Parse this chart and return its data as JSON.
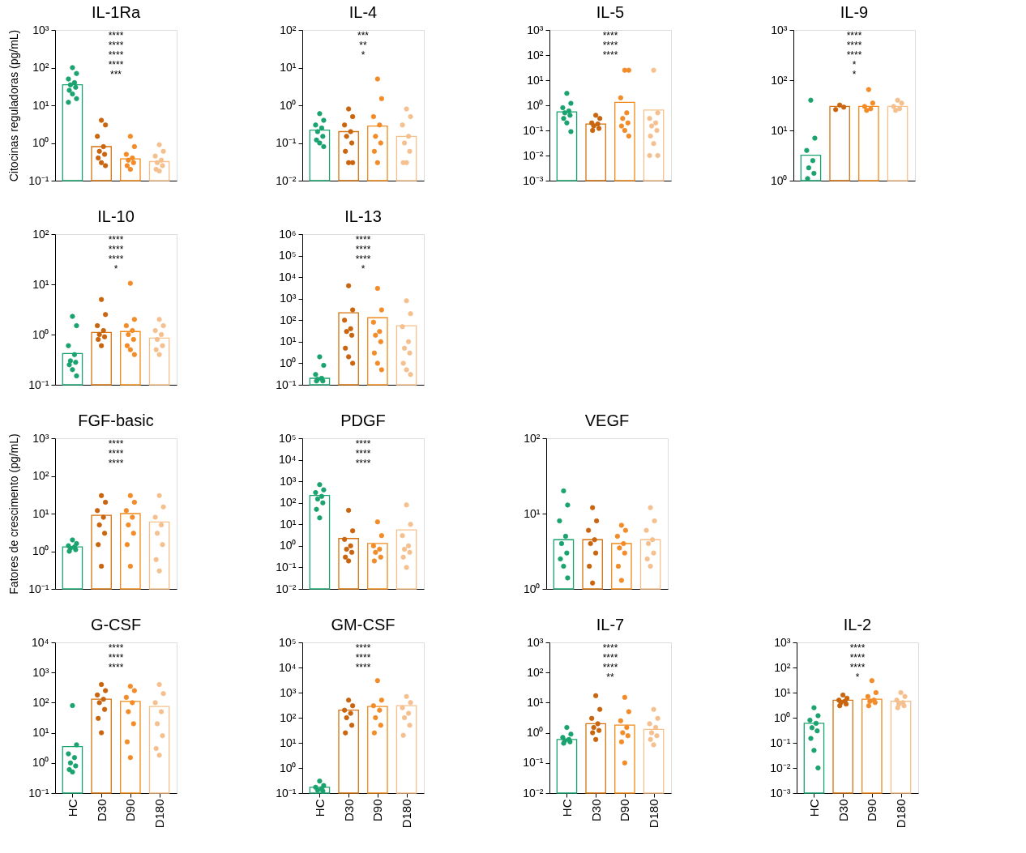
{
  "chart_data": [
    {
      "type": "bar",
      "title": "IL-1Ra",
      "ylabel": "Citocinas reguladoras (pg/mL)",
      "log": true,
      "tick_labels": "y",
      "marker": "circle",
      "categories": [
        "HC",
        "D30",
        "D90",
        "D180"
      ],
      "ylim": [
        0.1,
        1000
      ],
      "yticks": [
        {
          "value": 0.1,
          "label": "10⁻¹"
        },
        {
          "value": 1,
          "label": "10⁰"
        },
        {
          "value": 10,
          "label": "10¹"
        },
        {
          "value": 100,
          "label": "10²"
        },
        {
          "value": 1000,
          "label": "10³"
        }
      ],
      "annotations": [
        "****",
        "****",
        "****",
        "****",
        "***"
      ],
      "series": [
        {
          "type": "bar",
          "colors": [
            "#1aa36f",
            "#d4730f",
            "#f08a1a",
            "#f7c08a"
          ],
          "values": [
            35,
            0.8,
            0.38,
            0.32
          ]
        },
        {
          "type": "scatter",
          "color": "#1aa36f",
          "x": [
            "HC",
            "HC",
            "HC",
            "HC",
            "HC",
            "HC",
            "HC",
            "HC",
            "HC",
            "HC"
          ],
          "values": [
            100,
            70,
            50,
            40,
            35,
            30,
            25,
            20,
            15,
            12
          ]
        },
        {
          "type": "scatter",
          "color": "#c8650e",
          "x": [
            "D30",
            "D30",
            "D30",
            "D30",
            "D30",
            "D30",
            "D30",
            "D30",
            "D30"
          ],
          "values": [
            4,
            3,
            1.5,
            0.8,
            0.6,
            0.5,
            0.4,
            0.3,
            0.25
          ]
        },
        {
          "type": "scatter",
          "color": "#f28c28",
          "x": [
            "D90",
            "D90",
            "D90",
            "D90",
            "D90",
            "D90",
            "D90",
            "D90"
          ],
          "values": [
            1.5,
            0.8,
            0.5,
            0.4,
            0.35,
            0.3,
            0.25,
            0.2
          ]
        },
        {
          "type": "scatter",
          "color": "#f5c08f",
          "x": [
            "D180",
            "D180",
            "D180",
            "D180",
            "D180",
            "D180",
            "D180",
            "D180"
          ],
          "values": [
            0.9,
            0.6,
            0.45,
            0.35,
            0.3,
            0.25,
            0.2,
            0.18
          ]
        }
      ]
    },
    {
      "type": "bar",
      "title": "IL-4",
      "log": true,
      "tick_labels": "y",
      "marker": "circle",
      "categories": [
        "HC",
        "D30",
        "D90",
        "D180"
      ],
      "ylim": [
        0.01,
        100
      ],
      "yticks": [
        {
          "value": 0.01,
          "label": "10⁻²"
        },
        {
          "value": 0.1,
          "label": "10⁻¹"
        },
        {
          "value": 1,
          "label": "10⁰"
        },
        {
          "value": 10,
          "label": "10¹"
        },
        {
          "value": 100,
          "label": "10²"
        }
      ],
      "annotations": [
        "***",
        "**",
        "*"
      ],
      "series": [
        {
          "type": "bar",
          "colors": [
            "#1aa36f",
            "#d4730f",
            "#f08a1a",
            "#f7c08a"
          ],
          "values": [
            0.22,
            0.2,
            0.28,
            0.15
          ]
        },
        {
          "type": "scatter",
          "color": "#1aa36f",
          "x": [
            "HC",
            "HC",
            "HC",
            "HC",
            "HC",
            "HC",
            "HC",
            "HC",
            "HC"
          ],
          "values": [
            0.6,
            0.4,
            0.3,
            0.25,
            0.2,
            0.15,
            0.12,
            0.1,
            0.08
          ]
        },
        {
          "type": "scatter",
          "color": "#c8650e",
          "x": [
            "D30",
            "D30",
            "D30",
            "D30",
            "D30",
            "D30",
            "D30",
            "D30",
            "D30"
          ],
          "values": [
            0.8,
            0.5,
            0.3,
            0.2,
            0.15,
            0.1,
            0.06,
            0.03,
            0.03
          ]
        },
        {
          "type": "scatter",
          "color": "#f28c28",
          "x": [
            "D90",
            "D90",
            "D90",
            "D90",
            "D90",
            "D90",
            "D90",
            "D90"
          ],
          "values": [
            5,
            1.5,
            0.5,
            0.3,
            0.15,
            0.1,
            0.06,
            0.03
          ]
        },
        {
          "type": "scatter",
          "color": "#f5c08f",
          "x": [
            "D180",
            "D180",
            "D180",
            "D180",
            "D180",
            "D180",
            "D180",
            "D180"
          ],
          "values": [
            0.8,
            0.5,
            0.3,
            0.15,
            0.1,
            0.06,
            0.03,
            0.03
          ]
        }
      ]
    },
    {
      "type": "bar",
      "title": "IL-5",
      "log": true,
      "tick_labels": "y",
      "marker": "circle",
      "categories": [
        "HC",
        "D30",
        "D90",
        "D180"
      ],
      "ylim": [
        0.001,
        1000
      ],
      "yticks": [
        {
          "value": 0.001,
          "label": "10⁻³"
        },
        {
          "value": 0.01,
          "label": "10⁻²"
        },
        {
          "value": 0.1,
          "label": "10⁻¹"
        },
        {
          "value": 1,
          "label": "10⁰"
        },
        {
          "value": 10,
          "label": "10¹"
        },
        {
          "value": 100,
          "label": "10²"
        },
        {
          "value": 1000,
          "label": "10³"
        }
      ],
      "annotations": [
        "****",
        "****",
        "****"
      ],
      "series": [
        {
          "type": "bar",
          "colors": [
            "#1aa36f",
            "#d4730f",
            "#f08a1a",
            "#f7c08a"
          ],
          "values": [
            0.55,
            0.18,
            1.3,
            0.65
          ]
        },
        {
          "type": "scatter",
          "color": "#1aa36f",
          "x": [
            "HC",
            "HC",
            "HC",
            "HC",
            "HC",
            "HC",
            "HC",
            "HC",
            "HC"
          ],
          "values": [
            3,
            1.2,
            0.8,
            0.6,
            0.5,
            0.4,
            0.3,
            0.2,
            0.09
          ]
        },
        {
          "type": "scatter",
          "color": "#c8650e",
          "x": [
            "D30",
            "D30",
            "D30",
            "D30",
            "D30",
            "D30",
            "D30"
          ],
          "values": [
            0.4,
            0.3,
            0.2,
            0.18,
            0.15,
            0.12,
            0.1
          ]
        },
        {
          "type": "scatter",
          "color": "#f28c28",
          "x": [
            "D90",
            "D90",
            "D90",
            "D90",
            "D90",
            "D90",
            "D90",
            "D90",
            "D90"
          ],
          "values": [
            25,
            25,
            2,
            0.5,
            0.3,
            0.2,
            0.15,
            0.1,
            0.06
          ]
        },
        {
          "type": "scatter",
          "color": "#f5c08f",
          "x": [
            "D180",
            "D180",
            "D180",
            "D180",
            "D180",
            "D180",
            "D180",
            "D180",
            "D180",
            "D180"
          ],
          "values": [
            25,
            0.5,
            0.3,
            0.2,
            0.15,
            0.1,
            0.06,
            0.03,
            0.01,
            0.01
          ]
        }
      ]
    },
    {
      "type": "bar",
      "title": "IL-9",
      "log": true,
      "tick_labels": "y",
      "marker": "circle",
      "categories": [
        "HC",
        "D30",
        "D90",
        "D180"
      ],
      "ylim": [
        1,
        1000
      ],
      "yticks": [
        {
          "value": 1,
          "label": "10⁰"
        },
        {
          "value": 10,
          "label": "10¹"
        },
        {
          "value": 100,
          "label": "10²"
        },
        {
          "value": 1000,
          "label": "10³"
        }
      ],
      "annotations": [
        "****",
        "****",
        "****",
        "*",
        "*"
      ],
      "series": [
        {
          "type": "bar",
          "colors": [
            "#1aa36f",
            "#d4730f",
            "#f08a1a",
            "#f7c08a"
          ],
          "values": [
            3.2,
            30,
            30,
            30
          ]
        },
        {
          "type": "scatter",
          "color": "#1aa36f",
          "x": [
            "HC",
            "HC",
            "HC",
            "HC",
            "HC",
            "HC",
            "HC"
          ],
          "values": [
            40,
            7,
            4,
            2.5,
            1.8,
            1.4,
            1.1
          ]
        },
        {
          "type": "scatter",
          "color": "#c8650e",
          "x": [
            "D30",
            "D30",
            "D30"
          ],
          "values": [
            32,
            29,
            26
          ]
        },
        {
          "type": "scatter",
          "color": "#f28c28",
          "x": [
            "D90",
            "D90",
            "D90",
            "D90",
            "D90"
          ],
          "values": [
            65,
            35,
            30,
            27,
            25
          ]
        },
        {
          "type": "scatter",
          "color": "#f5c08f",
          "x": [
            "D180",
            "D180",
            "D180",
            "D180",
            "D180"
          ],
          "values": [
            40,
            35,
            30,
            27,
            25
          ]
        }
      ]
    },
    {
      "type": "bar",
      "title": "IL-10",
      "log": true,
      "tick_labels": "y",
      "marker": "circle",
      "categories": [
        "HC",
        "D30",
        "D90",
        "D180"
      ],
      "ylim": [
        0.1,
        100
      ],
      "yticks": [
        {
          "value": 0.1,
          "label": "10⁻¹"
        },
        {
          "value": 1,
          "label": "10⁰"
        },
        {
          "value": 10,
          "label": "10¹"
        },
        {
          "value": 100,
          "label": "10²"
        }
      ],
      "annotations": [
        "****",
        "****",
        "****",
        "*"
      ],
      "series": [
        {
          "type": "bar",
          "colors": [
            "#1aa36f",
            "#d4730f",
            "#f08a1a",
            "#f7c08a"
          ],
          "values": [
            0.42,
            1.1,
            1.15,
            0.85
          ]
        },
        {
          "type": "scatter",
          "color": "#1aa36f",
          "x": [
            "HC",
            "HC",
            "HC",
            "HC",
            "HC",
            "HC",
            "HC",
            "HC",
            "HC"
          ],
          "values": [
            2.3,
            1.5,
            0.6,
            0.4,
            0.3,
            0.28,
            0.25,
            0.2,
            0.15
          ]
        },
        {
          "type": "scatter",
          "color": "#c8650e",
          "x": [
            "D30",
            "D30",
            "D30",
            "D30",
            "D30",
            "D30",
            "D30",
            "D30"
          ],
          "values": [
            5,
            2.5,
            1.5,
            1.2,
            1,
            0.9,
            0.8,
            0.6
          ]
        },
        {
          "type": "scatter",
          "color": "#f28c28",
          "x": [
            "D90",
            "D90",
            "D90",
            "D90",
            "D90",
            "D90",
            "D90",
            "D90",
            "D90"
          ],
          "values": [
            10.5,
            2,
            1.5,
            1.2,
            1,
            0.8,
            0.6,
            0.5,
            0.4
          ]
        },
        {
          "type": "scatter",
          "color": "#f5c08f",
          "x": [
            "D180",
            "D180",
            "D180",
            "D180",
            "D180",
            "D180",
            "D180",
            "D180"
          ],
          "values": [
            2,
            1.5,
            1.2,
            1,
            0.8,
            0.6,
            0.5,
            0.4
          ]
        }
      ]
    },
    {
      "type": "bar",
      "title": "IL-13",
      "log": true,
      "tick_labels": "y",
      "marker": "circle",
      "categories": [
        "HC",
        "D30",
        "D90",
        "D180"
      ],
      "ylim": [
        0.1,
        1000000
      ],
      "yticks": [
        {
          "value": 0.1,
          "label": "10⁻¹"
        },
        {
          "value": 1,
          "label": "10⁰"
        },
        {
          "value": 10,
          "label": "10¹"
        },
        {
          "value": 100,
          "label": "10²"
        },
        {
          "value": 1000,
          "label": "10³"
        },
        {
          "value": 10000,
          "label": "10⁴"
        },
        {
          "value": 100000,
          "label": "10⁵"
        },
        {
          "value": 1000000,
          "label": "10⁶"
        }
      ],
      "annotations": [
        "****",
        "****",
        "****",
        "*"
      ],
      "series": [
        {
          "type": "bar",
          "colors": [
            "#1aa36f",
            "#d4730f",
            "#f08a1a",
            "#f7c08a"
          ],
          "values": [
            0.2,
            220,
            130,
            55
          ]
        },
        {
          "type": "scatter",
          "color": "#1aa36f",
          "x": [
            "HC",
            "HC",
            "HC",
            "HC",
            "HC",
            "HC",
            "HC"
          ],
          "values": [
            2,
            0.8,
            0.3,
            0.2,
            0.18,
            0.15,
            0.15
          ]
        },
        {
          "type": "scatter",
          "color": "#c8650e",
          "x": [
            "D30",
            "D30",
            "D30",
            "D30",
            "D30",
            "D30",
            "D30",
            "D30",
            "D30"
          ],
          "values": [
            4000,
            300,
            100,
            40,
            30,
            20,
            5,
            2,
            1
          ]
        },
        {
          "type": "scatter",
          "color": "#f28c28",
          "x": [
            "D90",
            "D90",
            "D90",
            "D90",
            "D90",
            "D90",
            "D90",
            "D90",
            "D90"
          ],
          "values": [
            3000,
            300,
            80,
            30,
            20,
            10,
            3,
            1,
            0.5
          ]
        },
        {
          "type": "scatter",
          "color": "#f5c08f",
          "x": [
            "D180",
            "D180",
            "D180",
            "D180",
            "D180",
            "D180",
            "D180",
            "D180",
            "D180"
          ],
          "values": [
            800,
            200,
            50,
            10,
            5,
            3,
            1,
            0.5,
            0.3
          ]
        }
      ]
    },
    {
      "type": "bar",
      "title": "FGF-basic",
      "ylabel": "Fatores de crescimento (pg/mL)",
      "log": true,
      "tick_labels": "y",
      "marker": "circle",
      "categories": [
        "HC",
        "D30",
        "D90",
        "D180"
      ],
      "ylim": [
        0.1,
        1000
      ],
      "yticks": [
        {
          "value": 0.1,
          "label": "10⁻¹"
        },
        {
          "value": 1,
          "label": "10⁰"
        },
        {
          "value": 10,
          "label": "10¹"
        },
        {
          "value": 100,
          "label": "10²"
        },
        {
          "value": 1000,
          "label": "10³"
        }
      ],
      "annotations": [
        "****",
        "****",
        "****"
      ],
      "series": [
        {
          "type": "bar",
          "colors": [
            "#1aa36f",
            "#d4730f",
            "#f08a1a",
            "#f7c08a"
          ],
          "values": [
            1.3,
            9,
            10,
            6
          ]
        },
        {
          "type": "scatter",
          "color": "#1aa36f",
          "x": [
            "HC",
            "HC",
            "HC",
            "HC",
            "HC",
            "HC",
            "HC"
          ],
          "values": [
            2,
            1.6,
            1.4,
            1.3,
            1.2,
            1.1,
            1
          ]
        },
        {
          "type": "scatter",
          "color": "#c8650e",
          "x": [
            "D30",
            "D30",
            "D30",
            "D30",
            "D30",
            "D30",
            "D30",
            "D30"
          ],
          "values": [
            30,
            20,
            12,
            8,
            5,
            3,
            1.5,
            0.4
          ]
        },
        {
          "type": "scatter",
          "color": "#f28c28",
          "x": [
            "D90",
            "D90",
            "D90",
            "D90",
            "D90",
            "D90",
            "D90",
            "D90"
          ],
          "values": [
            30,
            20,
            12,
            8,
            5,
            3,
            1.5,
            0.4
          ]
        },
        {
          "type": "scatter",
          "color": "#f5c08f",
          "x": [
            "D180",
            "D180",
            "D180",
            "D180",
            "D180",
            "D180",
            "D180",
            "D180"
          ],
          "values": [
            30,
            15,
            8,
            5,
            3,
            1.5,
            0.6,
            0.3
          ]
        }
      ]
    },
    {
      "type": "bar",
      "title": "PDGF",
      "log": true,
      "tick_labels": "y",
      "marker": "circle",
      "categories": [
        "HC",
        "D30",
        "D90",
        "D180"
      ],
      "ylim": [
        0.01,
        100000
      ],
      "yticks": [
        {
          "value": 0.01,
          "label": "10⁻²"
        },
        {
          "value": 0.1,
          "label": "10⁻¹"
        },
        {
          "value": 1,
          "label": "10⁰"
        },
        {
          "value": 10,
          "label": "10¹"
        },
        {
          "value": 100,
          "label": "10²"
        },
        {
          "value": 1000,
          "label": "10³"
        },
        {
          "value": 10000,
          "label": "10⁴"
        },
        {
          "value": 100000,
          "label": "10⁵"
        }
      ],
      "annotations": [
        "****",
        "****",
        "****"
      ],
      "series": [
        {
          "type": "bar",
          "colors": [
            "#1aa36f",
            "#d4730f",
            "#f08a1a",
            "#f7c08a"
          ],
          "values": [
            220,
            2.2,
            1.3,
            5.5
          ]
        },
        {
          "type": "scatter",
          "color": "#1aa36f",
          "x": [
            "HC",
            "HC",
            "HC",
            "HC",
            "HC",
            "HC",
            "HC",
            "HC"
          ],
          "values": [
            700,
            400,
            300,
            200,
            150,
            100,
            50,
            20
          ]
        },
        {
          "type": "scatter",
          "color": "#c8650e",
          "x": [
            "D30",
            "D30",
            "D30",
            "D30",
            "D30",
            "D30",
            "D30",
            "D30"
          ],
          "values": [
            45,
            5,
            2,
            1,
            0.7,
            0.5,
            0.3,
            0.2
          ]
        },
        {
          "type": "scatter",
          "color": "#f28c28",
          "x": [
            "D90",
            "D90",
            "D90",
            "D90",
            "D90",
            "D90",
            "D90"
          ],
          "values": [
            13,
            3,
            1,
            0.7,
            0.5,
            0.3,
            0.2
          ]
        },
        {
          "type": "scatter",
          "color": "#f5c08f",
          "x": [
            "D180",
            "D180",
            "D180",
            "D180",
            "D180",
            "D180",
            "D180",
            "D180"
          ],
          "values": [
            80,
            10,
            3,
            1,
            0.7,
            0.5,
            0.3,
            0.1
          ]
        }
      ]
    },
    {
      "type": "bar",
      "title": "VEGF",
      "log": true,
      "tick_labels": "y",
      "marker": "circle",
      "categories": [
        "HC",
        "D30",
        "D90",
        "D180"
      ],
      "ylim": [
        1,
        100
      ],
      "yticks": [
        {
          "value": 1,
          "label": "10⁰"
        },
        {
          "value": 10,
          "label": "10¹"
        },
        {
          "value": 100,
          "label": "10²"
        }
      ],
      "series": [
        {
          "type": "bar",
          "colors": [
            "#1aa36f",
            "#d4730f",
            "#f08a1a",
            "#f7c08a"
          ],
          "values": [
            4.5,
            4.5,
            4,
            4.5
          ]
        },
        {
          "type": "scatter",
          "color": "#1aa36f",
          "x": [
            "HC",
            "HC",
            "HC",
            "HC",
            "HC",
            "HC",
            "HC",
            "HC",
            "HC"
          ],
          "values": [
            20,
            13,
            8,
            5,
            4,
            3,
            2.5,
            2,
            1.4
          ]
        },
        {
          "type": "scatter",
          "color": "#c8650e",
          "x": [
            "D30",
            "D30",
            "D30",
            "D30",
            "D30",
            "D30",
            "D30",
            "D30"
          ],
          "values": [
            12,
            8,
            6,
            4.5,
            4,
            3,
            2,
            1.2
          ]
        },
        {
          "type": "scatter",
          "color": "#f28c28",
          "x": [
            "D90",
            "D90",
            "D90",
            "D90",
            "D90",
            "D90",
            "D90",
            "D90"
          ],
          "values": [
            7,
            6,
            5,
            4,
            3.5,
            3,
            2,
            1.3
          ]
        },
        {
          "type": "scatter",
          "color": "#f5c08f",
          "x": [
            "D180",
            "D180",
            "D180",
            "D180",
            "D180",
            "D180",
            "D180",
            "D180"
          ],
          "values": [
            12,
            8,
            6,
            4.5,
            4,
            3,
            2.5,
            2
          ]
        }
      ]
    },
    {
      "type": "bar",
      "title": "G-CSF",
      "log": true,
      "marker": "circle",
      "categories": [
        "HC",
        "D30",
        "D90",
        "D180"
      ],
      "ylim": [
        0.1,
        10000
      ],
      "yticks": [
        {
          "value": 0.1,
          "label": "10⁻¹"
        },
        {
          "value": 1,
          "label": "10⁰"
        },
        {
          "value": 10,
          "label": "10¹"
        },
        {
          "value": 100,
          "label": "10²"
        },
        {
          "value": 1000,
          "label": "10³"
        },
        {
          "value": 10000,
          "label": "10⁴"
        }
      ],
      "annotations": [
        "****",
        "****",
        "****"
      ],
      "series": [
        {
          "type": "bar",
          "colors": [
            "#1aa36f",
            "#d4730f",
            "#f08a1a",
            "#f7c08a"
          ],
          "values": [
            3.5,
            130,
            110,
            75
          ]
        },
        {
          "type": "scatter",
          "color": "#1aa36f",
          "x": [
            "HC",
            "HC",
            "HC",
            "HC",
            "HC",
            "HC",
            "HC",
            "HC"
          ],
          "values": [
            80,
            4,
            2,
            1.5,
            1,
            0.8,
            0.6,
            0.5
          ]
        },
        {
          "type": "scatter",
          "color": "#c8650e",
          "x": [
            "D30",
            "D30",
            "D30",
            "D30",
            "D30",
            "D30",
            "D30",
            "D30"
          ],
          "values": [
            400,
            250,
            180,
            130,
            100,
            60,
            30,
            10
          ]
        },
        {
          "type": "scatter",
          "color": "#f28c28",
          "x": [
            "D90",
            "D90",
            "D90",
            "D90",
            "D90",
            "D90",
            "D90",
            "D90"
          ],
          "values": [
            350,
            250,
            150,
            100,
            50,
            20,
            5,
            1.5
          ]
        },
        {
          "type": "scatter",
          "color": "#f5c08f",
          "x": [
            "D180",
            "D180",
            "D180",
            "D180",
            "D180",
            "D180",
            "D180",
            "D180"
          ],
          "values": [
            400,
            200,
            100,
            50,
            20,
            8,
            3,
            1.8
          ]
        }
      ]
    },
    {
      "type": "bar",
      "title": "GM-CSF",
      "log": true,
      "marker": "circle",
      "categories": [
        "HC",
        "D30",
        "D90",
        "D180"
      ],
      "ylim": [
        0.1,
        100000
      ],
      "yticks": [
        {
          "value": 0.1,
          "label": "10⁻¹"
        },
        {
          "value": 1,
          "label": "10⁰"
        },
        {
          "value": 10,
          "label": "10¹"
        },
        {
          "value": 100,
          "label": "10²"
        },
        {
          "value": 1000,
          "label": "10³"
        },
        {
          "value": 10000,
          "label": "10⁴"
        },
        {
          "value": 100000,
          "label": "10⁵"
        }
      ],
      "annotations": [
        "****",
        "****",
        "****"
      ],
      "series": [
        {
          "type": "bar",
          "colors": [
            "#1aa36f",
            "#d4730f",
            "#f08a1a",
            "#f7c08a"
          ],
          "values": [
            0.17,
            200,
            280,
            300
          ]
        },
        {
          "type": "scatter",
          "color": "#1aa36f",
          "x": [
            "HC",
            "HC",
            "HC",
            "HC",
            "HC",
            "HC"
          ],
          "values": [
            0.3,
            0.2,
            0.17,
            0.15,
            0.13,
            0.12
          ]
        },
        {
          "type": "scatter",
          "color": "#c8650e",
          "x": [
            "D30",
            "D30",
            "D30",
            "D30",
            "D30",
            "D30",
            "D30"
          ],
          "values": [
            500,
            300,
            200,
            150,
            100,
            50,
            25
          ]
        },
        {
          "type": "scatter",
          "color": "#f28c28",
          "x": [
            "D90",
            "D90",
            "D90",
            "D90",
            "D90",
            "D90",
            "D90"
          ],
          "values": [
            3000,
            500,
            300,
            200,
            100,
            50,
            25
          ]
        },
        {
          "type": "scatter",
          "color": "#f5c08f",
          "x": [
            "D180",
            "D180",
            "D180",
            "D180",
            "D180",
            "D180",
            "D180"
          ],
          "values": [
            700,
            400,
            250,
            150,
            100,
            50,
            20
          ]
        }
      ]
    },
    {
      "type": "bar",
      "title": "IL-7",
      "log": true,
      "marker": "circle",
      "categories": [
        "HC",
        "D30",
        "D90",
        "D180"
      ],
      "ylim": [
        0.01,
        1000
      ],
      "yticks": [
        {
          "value": 0.01,
          "label": "10⁻²"
        },
        {
          "value": 0.1,
          "label": "10⁻¹"
        },
        {
          "value": 1,
          "label": "10⁰"
        },
        {
          "value": 10,
          "label": "10¹"
        },
        {
          "value": 100,
          "label": "10²"
        },
        {
          "value": 1000,
          "label": "10³"
        }
      ],
      "annotations": [
        "****",
        "****",
        "****",
        "**"
      ],
      "series": [
        {
          "type": "bar",
          "colors": [
            "#1aa36f",
            "#d4730f",
            "#f08a1a",
            "#f7c08a"
          ],
          "values": [
            0.6,
            2,
            1.8,
            1.3
          ]
        },
        {
          "type": "scatter",
          "color": "#1aa36f",
          "x": [
            "HC",
            "HC",
            "HC",
            "HC",
            "HC",
            "HC",
            "HC"
          ],
          "values": [
            1.5,
            0.9,
            0.7,
            0.6,
            0.55,
            0.5,
            0.45
          ]
        },
        {
          "type": "scatter",
          "color": "#c8650e",
          "x": [
            "D30",
            "D30",
            "D30",
            "D30",
            "D30",
            "D30",
            "D30",
            "D30"
          ],
          "values": [
            17,
            6,
            3,
            2,
            1.5,
            1.2,
            1,
            0.6
          ]
        },
        {
          "type": "scatter",
          "color": "#f28c28",
          "x": [
            "D90",
            "D90",
            "D90",
            "D90",
            "D90",
            "D90",
            "D90",
            "D90"
          ],
          "values": [
            15,
            5,
            2.5,
            1.5,
            1,
            0.8,
            0.5,
            0.1
          ]
        },
        {
          "type": "scatter",
          "color": "#f5c08f",
          "x": [
            "D180",
            "D180",
            "D180",
            "D180",
            "D180",
            "D180",
            "D180",
            "D180"
          ],
          "values": [
            6,
            3,
            2,
            1.5,
            1,
            0.8,
            0.6,
            0.4
          ]
        }
      ]
    },
    {
      "type": "bar",
      "title": "IL-2",
      "log": true,
      "marker": "circle",
      "categories": [
        "HC",
        "D30",
        "D90",
        "D180"
      ],
      "ylim": [
        0.001,
        1000
      ],
      "yticks": [
        {
          "value": 0.001,
          "label": "10⁻³"
        },
        {
          "value": 0.01,
          "label": "10⁻²"
        },
        {
          "value": 0.1,
          "label": "10⁻¹"
        },
        {
          "value": 1,
          "label": "10⁰"
        },
        {
          "value": 10,
          "label": "10¹"
        },
        {
          "value": 100,
          "label": "10²"
        },
        {
          "value": 1000,
          "label": "10³"
        }
      ],
      "annotations": [
        "****",
        "****",
        "****",
        "*"
      ],
      "series": [
        {
          "type": "bar",
          "colors": [
            "#1aa36f",
            "#d4730f",
            "#f08a1a",
            "#f7c08a"
          ],
          "values": [
            0.6,
            5,
            5.5,
            4.5
          ]
        },
        {
          "type": "scatter",
          "color": "#1aa36f",
          "x": [
            "HC",
            "HC",
            "HC",
            "HC",
            "HC",
            "HC",
            "HC",
            "HC",
            "HC"
          ],
          "values": [
            2.5,
            1.2,
            0.8,
            0.6,
            0.4,
            0.3,
            0.15,
            0.05,
            0.01
          ]
        },
        {
          "type": "scatter",
          "color": "#c8650e",
          "x": [
            "D30",
            "D30",
            "D30",
            "D30",
            "D30",
            "D30",
            "D30"
          ],
          "values": [
            8,
            6,
            5,
            4.5,
            4,
            3.5,
            3
          ]
        },
        {
          "type": "scatter",
          "color": "#f28c28",
          "x": [
            "D90",
            "D90",
            "D90",
            "D90",
            "D90",
            "D90",
            "D90"
          ],
          "values": [
            30,
            10,
            7,
            5,
            4.5,
            4,
            3
          ]
        },
        {
          "type": "scatter",
          "color": "#f5c08f",
          "x": [
            "D180",
            "D180",
            "D180",
            "D180",
            "D180",
            "D180",
            "D180"
          ],
          "values": [
            10,
            7,
            5,
            4,
            3.5,
            3,
            2.5
          ]
        }
      ]
    }
  ]
}
